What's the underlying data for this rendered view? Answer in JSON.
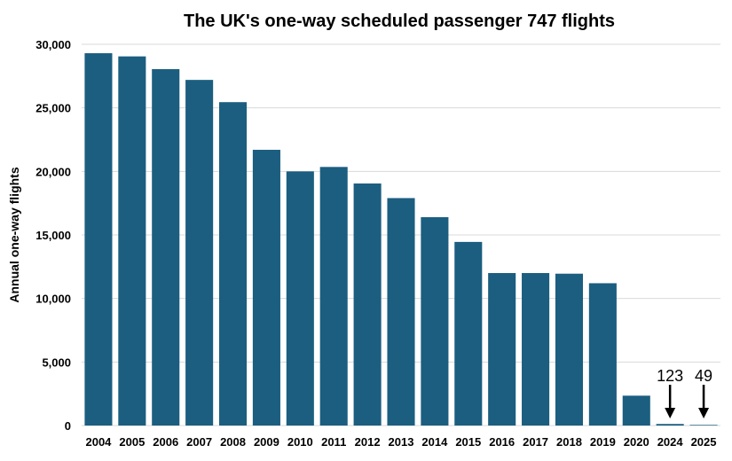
{
  "chart_data": {
    "type": "bar",
    "title": "The UK's one-way scheduled passenger 747 flights",
    "xlabel": "",
    "ylabel": "Annual one-way flights",
    "ylim": [
      0,
      30000
    ],
    "yticks": [
      0,
      5000,
      10000,
      15000,
      20000,
      25000,
      30000
    ],
    "ytick_labels": [
      "0",
      "5,000",
      "10,000",
      "15,000",
      "20,000",
      "25,000",
      "30,000"
    ],
    "grid": true,
    "categories": [
      "2004",
      "2005",
      "2006",
      "2007",
      "2008",
      "2009",
      "2010",
      "2011",
      "2012",
      "2013",
      "2014",
      "2015",
      "2016",
      "2017",
      "2018",
      "2019",
      "2020",
      "2024",
      "2025"
    ],
    "values": [
      29300,
      29050,
      28050,
      27200,
      25450,
      21700,
      20000,
      20350,
      19050,
      17900,
      16400,
      14450,
      12000,
      12000,
      11950,
      11200,
      2350,
      123,
      49
    ],
    "annotations": [
      {
        "category": "2024",
        "text": "123",
        "arrow": "down"
      },
      {
        "category": "2025",
        "text": "49",
        "arrow": "down"
      }
    ],
    "bar_color": "#1B5E80",
    "grid_color": "#D9D9D9"
  }
}
